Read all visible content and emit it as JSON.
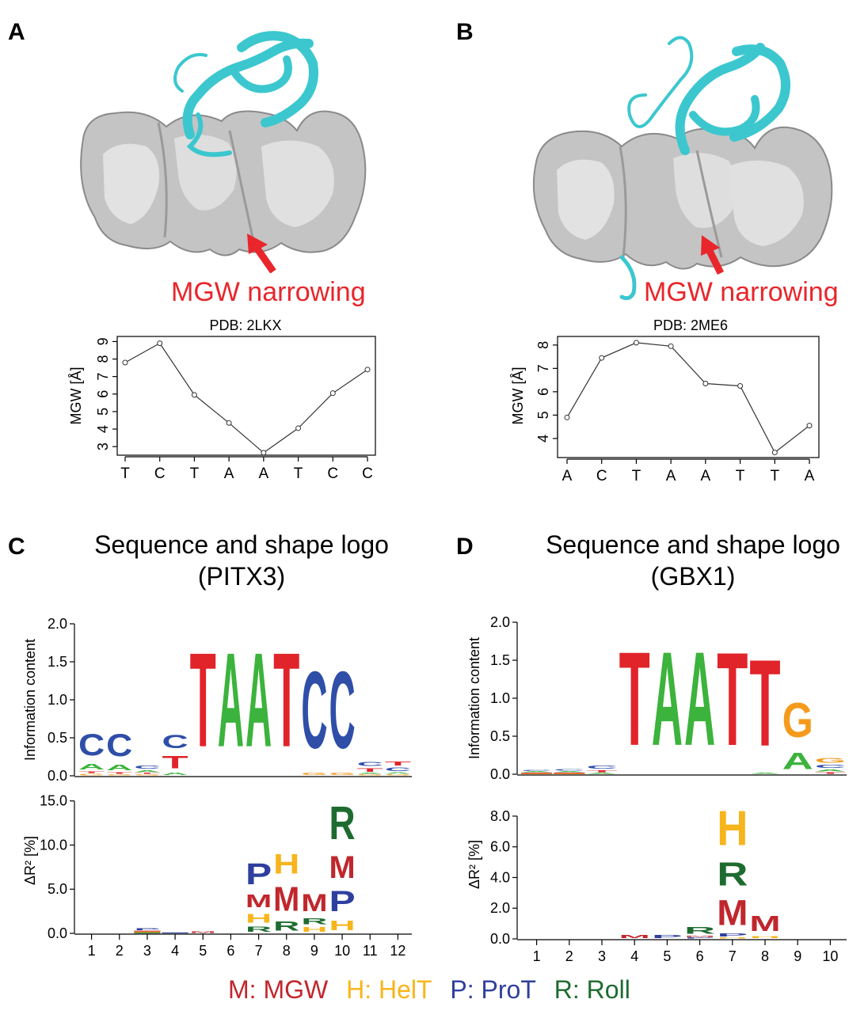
{
  "panels": {
    "A": {
      "label": "A",
      "annotation": "MGW narrowing",
      "chart_title": "PDB: 2LKX"
    },
    "B": {
      "label": "B",
      "annotation": "MGW narrowing",
      "chart_title": "PDB: 2ME6"
    },
    "C": {
      "label": "C",
      "title_line1": "Sequence and shape logo",
      "title_line2": "(PITX3)"
    },
    "D": {
      "label": "D",
      "title_line1": "Sequence and shape logo",
      "title_line2": "(GBX1)"
    }
  },
  "legend": {
    "M": "M: MGW",
    "H": "H: HelT",
    "P": "P: ProT",
    "R": "R: Roll"
  },
  "colors": {
    "A": "#3cb33c",
    "C": "#2e4ea8",
    "G": "#f59a1c",
    "T": "#e0242a",
    "M": "#c0272d",
    "H": "#f7b51c",
    "P": "#2e3f9e",
    "R": "#1e6b30",
    "annotation": "#e8262b",
    "protein": "#3cc7cf",
    "dna_surface": "#c8c8c8"
  },
  "chart_data": [
    {
      "type": "line",
      "title": "PDB: 2LKX",
      "ylabel": "MGW [Å]",
      "categories": [
        "T",
        "C",
        "T",
        "A",
        "A",
        "T",
        "C",
        "C"
      ],
      "values": [
        7.8,
        8.9,
        5.95,
        4.35,
        2.65,
        4.05,
        6.05,
        7.4
      ],
      "ylim": [
        2.6,
        9.2
      ],
      "yticks": [
        3,
        4,
        5,
        6,
        7,
        8,
        9
      ]
    },
    {
      "type": "line",
      "title": "PDB: 2ME6",
      "ylabel": "MGW [Å]",
      "categories": [
        "A",
        "C",
        "T",
        "A",
        "A",
        "T",
        "T",
        "A"
      ],
      "values": [
        4.9,
        7.45,
        8.1,
        7.95,
        6.35,
        6.25,
        3.4,
        4.55
      ],
      "ylim": [
        3.25,
        8.3
      ],
      "yticks": [
        4,
        5,
        6,
        7,
        8
      ]
    },
    {
      "type": "sequence_logo",
      "ylabel": "Information content",
      "ylim": [
        0,
        2.0
      ],
      "yticks": [
        "0.0",
        "0.5",
        "1.0",
        "1.5",
        "2.0"
      ],
      "positions": [
        [
          {
            "l": "G",
            "v": 0.03
          },
          {
            "l": "T",
            "v": 0.03
          },
          {
            "l": "A",
            "v": 0.12
          },
          {
            "l": "C",
            "v": 0.45
          }
        ],
        [
          {
            "l": "G",
            "v": 0.02
          },
          {
            "l": "T",
            "v": 0.03
          },
          {
            "l": "A",
            "v": 0.12
          },
          {
            "l": "C",
            "v": 0.47
          }
        ],
        [
          {
            "l": "G",
            "v": 0.02
          },
          {
            "l": "T",
            "v": 0.02
          },
          {
            "l": "A",
            "v": 0.04
          },
          {
            "l": "C",
            "v": 0.06
          }
        ],
        [
          {
            "l": "A",
            "v": 0.05
          },
          {
            "l": "T",
            "v": 0.26
          },
          {
            "l": "C",
            "v": 0.28
          }
        ],
        [
          {
            "l": "T",
            "v": 1.98
          }
        ],
        [
          {
            "l": "A",
            "v": 1.98
          }
        ],
        [
          {
            "l": "A",
            "v": 1.98
          }
        ],
        [
          {
            "l": "T",
            "v": 1.98
          }
        ],
        [
          {
            "l": "G",
            "v": 0.05
          },
          {
            "l": "C",
            "v": 1.62
          }
        ],
        [
          {
            "l": "G",
            "v": 0.05
          },
          {
            "l": "C",
            "v": 1.62
          }
        ],
        [
          {
            "l": "G",
            "v": 0.02
          },
          {
            "l": "A",
            "v": 0.02
          },
          {
            "l": "T",
            "v": 0.07
          },
          {
            "l": "C",
            "v": 0.09
          }
        ],
        [
          {
            "l": "G",
            "v": 0.02
          },
          {
            "l": "A",
            "v": 0.03
          },
          {
            "l": "C",
            "v": 0.07
          },
          {
            "l": "T",
            "v": 0.08
          }
        ]
      ]
    },
    {
      "type": "shape_logo",
      "ylabel": "ΔR² [%]",
      "ylim": [
        0,
        16.5
      ],
      "yticks": [
        "0.0",
        "5.0",
        "10.0",
        "15.0"
      ],
      "xticks": [
        "1",
        "2",
        "3",
        "4",
        "5",
        "6",
        "7",
        "8",
        "9",
        "10",
        "11",
        "12"
      ],
      "positions": [
        [],
        [],
        [
          {
            "l": "R",
            "v": 0.1
          },
          {
            "l": "H",
            "v": 0.1
          },
          {
            "l": "M",
            "v": 0.1
          },
          {
            "l": "P",
            "v": 0.4
          }
        ],
        [
          {
            "l": "P",
            "v": 0.1
          }
        ],
        [
          {
            "l": "M",
            "v": 0.25
          }
        ],
        [],
        [
          {
            "l": "R",
            "v": 0.9
          },
          {
            "l": "H",
            "v": 1.6
          },
          {
            "l": "M",
            "v": 2.3
          },
          {
            "l": "P",
            "v": 3.8
          }
        ],
        [
          {
            "l": "R",
            "v": 1.7
          },
          {
            "l": "M",
            "v": 4.4
          },
          {
            "l": "H",
            "v": 3.5
          }
        ],
        [
          {
            "l": "H",
            "v": 0.8
          },
          {
            "l": "R",
            "v": 1.1
          },
          {
            "l": "M",
            "v": 3.2
          }
        ],
        [
          {
            "l": "H",
            "v": 1.8
          },
          {
            "l": "P",
            "v": 3.7
          },
          {
            "l": "M",
            "v": 4.0
          },
          {
            "l": "R",
            "v": 6.0
          }
        ],
        [],
        []
      ]
    },
    {
      "type": "sequence_logo",
      "ylabel": "Information content",
      "ylim": [
        0,
        2.0
      ],
      "yticks": [
        "0.0",
        "0.5",
        "1.0",
        "1.5",
        "2.0"
      ],
      "positions": [
        [
          {
            "l": "G",
            "v": 0.01
          },
          {
            "l": "T",
            "v": 0.01
          },
          {
            "l": "A",
            "v": 0.02
          },
          {
            "l": "C",
            "v": 0.02
          }
        ],
        [
          {
            "l": "G",
            "v": 0.01
          },
          {
            "l": "T",
            "v": 0.01
          },
          {
            "l": "A",
            "v": 0.02
          },
          {
            "l": "C",
            "v": 0.03
          }
        ],
        [
          {
            "l": "A",
            "v": 0.02
          },
          {
            "l": "T",
            "v": 0.04
          },
          {
            "l": "C",
            "v": 0.06
          }
        ],
        [
          {
            "l": "T",
            "v": 1.97
          }
        ],
        [
          {
            "l": "A",
            "v": 1.97
          }
        ],
        [
          {
            "l": "A",
            "v": 1.97
          }
        ],
        [
          {
            "l": "T",
            "v": 1.96
          }
        ],
        [
          {
            "l": "A",
            "v": 0.02
          },
          {
            "l": "T",
            "v": 1.82
          }
        ],
        [
          {
            "l": "A",
            "v": 0.35
          },
          {
            "l": "G",
            "v": 0.72
          }
        ],
        [
          {
            "l": "T",
            "v": 0.03
          },
          {
            "l": "A",
            "v": 0.04
          },
          {
            "l": "C",
            "v": 0.06
          },
          {
            "l": "G",
            "v": 0.1
          }
        ]
      ]
    },
    {
      "type": "shape_logo",
      "ylabel": "ΔR² [%]",
      "ylim": [
        0,
        9.7
      ],
      "yticks": [
        "0.0",
        "2.0",
        "4.0",
        "6.0",
        "8.0"
      ],
      "xticks": [
        "1",
        "2",
        "3",
        "4",
        "5",
        "6",
        "7",
        "8",
        "9",
        "10"
      ],
      "positions": [
        [],
        [],
        [],
        [
          {
            "l": "M",
            "v": 0.3
          }
        ],
        [
          {
            "l": "P",
            "v": 0.3
          }
        ],
        [
          {
            "l": "P",
            "v": 0.1
          },
          {
            "l": "M",
            "v": 0.1
          },
          {
            "l": "R",
            "v": 0.7
          }
        ],
        [
          {
            "l": "H",
            "v": 0.1
          },
          {
            "l": "P",
            "v": 0.3
          },
          {
            "l": "M",
            "v": 2.6
          },
          {
            "l": "R",
            "v": 2.4
          },
          {
            "l": "H",
            "v": 3.6
          }
        ],
        [
          {
            "l": "H",
            "v": 0.2
          },
          {
            "l": "M",
            "v": 1.6
          }
        ],
        [],
        []
      ]
    }
  ]
}
